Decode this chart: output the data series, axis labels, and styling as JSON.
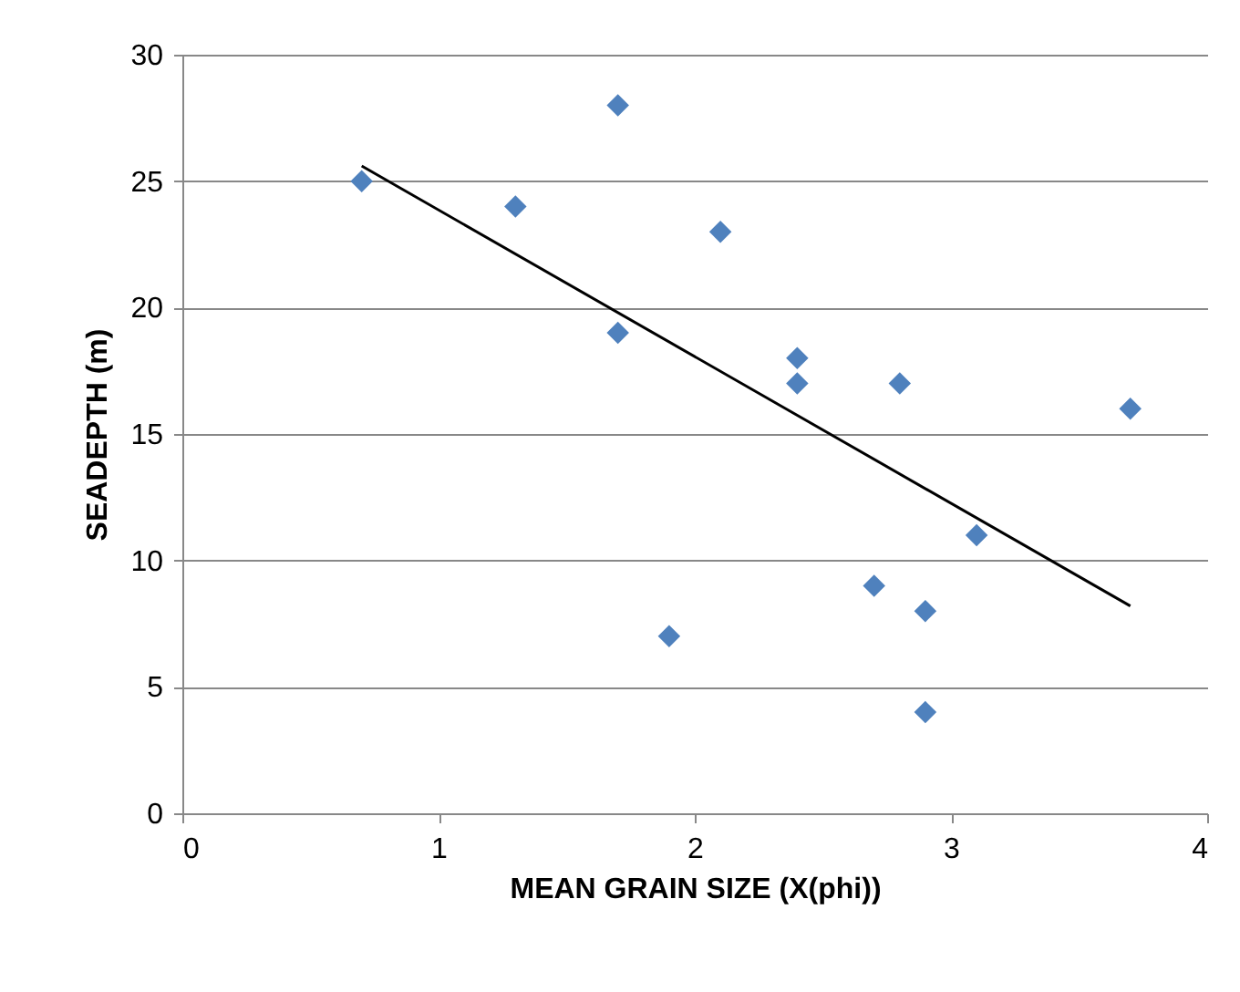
{
  "chart_data": {
    "type": "scatter",
    "xlabel": "MEAN GRAIN SIZE (X(phi))",
    "ylabel": "SEADEPTH (m)",
    "x": [
      0.7,
      1.3,
      1.7,
      1.7,
      1.9,
      2.1,
      2.4,
      2.4,
      2.7,
      2.8,
      2.9,
      2.9,
      3.1,
      3.7
    ],
    "series": [
      {
        "color": "#4f81bd",
        "marker": "diamond",
        "values": [
          25,
          24,
          28,
          19,
          7,
          23,
          18,
          17,
          9,
          17,
          8,
          4,
          11,
          16
        ]
      },
      {
        "type": "line",
        "color": "#000000",
        "x": [
          0.7,
          3.7
        ],
        "values": [
          25.6,
          8.2
        ]
      }
    ],
    "xlim": [
      0,
      4
    ],
    "xticks": [
      0,
      1,
      2,
      3,
      4
    ],
    "ylim": [
      0,
      30
    ],
    "yticks": [
      0,
      5,
      10,
      15,
      20,
      25,
      30
    ],
    "grid": "y",
    "line_style": "solid"
  }
}
